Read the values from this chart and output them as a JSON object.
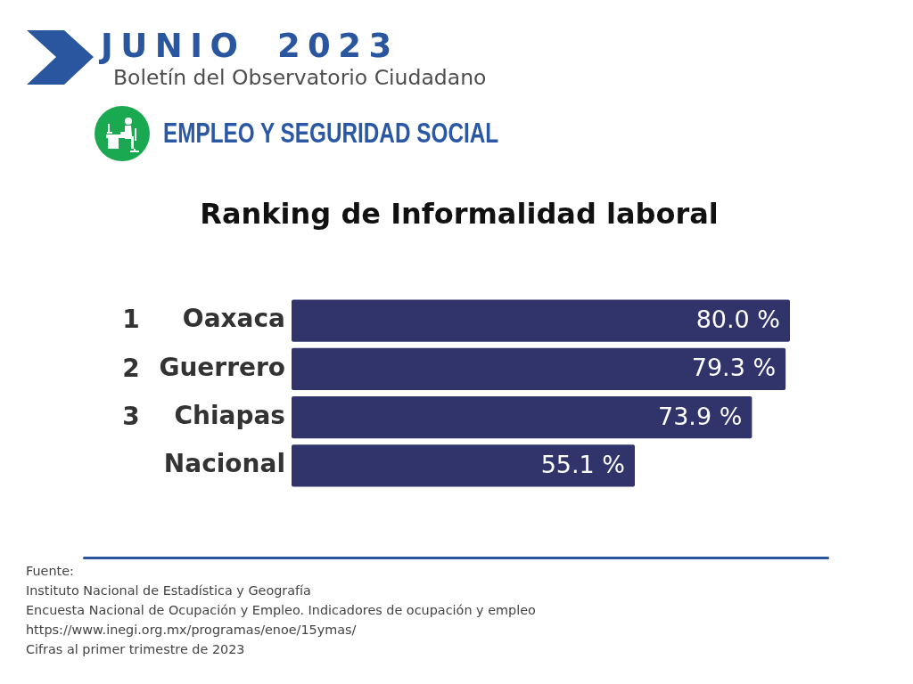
{
  "chart_data": {
    "type": "bar",
    "orientation": "horizontal",
    "title": "Ranking de Informalidad laboral",
    "categories": [
      "Oaxaca",
      "Guerrero",
      "Chiapas",
      "Nacional"
    ],
    "values": [
      80.0,
      79.3,
      73.9,
      55.1
    ],
    "value_labels": [
      "80.0 %",
      "79.3 %",
      "73.9 %",
      "55.1 %"
    ],
    "color": "#31346b",
    "xlim": [
      0,
      80
    ],
    "tick_labels": "y",
    "annotations": [
      "JUNIO 2023",
      "Boletín del Observatorio Ciudadano",
      "EMPLEO Y SEGURIDAD SOCIAL",
      "1",
      "2",
      "3",
      "Fuente:",
      "Instituto Nacional de Estadística y Geografía",
      "Encuesta Nacional de Ocupación y Empleo. Indicadores de ocupación y empleo",
      "https://www.inegi.org.mx/programas/enoe/15ymas/",
      "Cifras al primer trimestre de 2023"
    ]
  }
}
